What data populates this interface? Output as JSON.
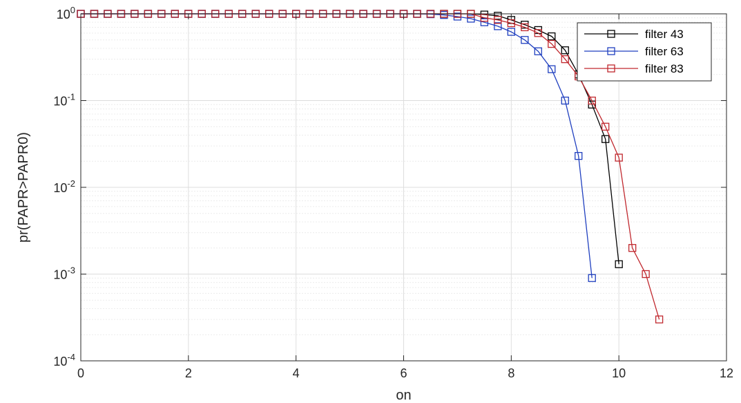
{
  "chart_data": {
    "type": "line",
    "xlabel": "on",
    "ylabel": "pr(PAPR>PAPR0)",
    "xlim": [
      0,
      12
    ],
    "ylim": [
      0.0001,
      1
    ],
    "yscale": "log",
    "xticks": [
      0,
      2,
      4,
      6,
      8,
      10,
      12
    ],
    "xtick_labels": [
      "0",
      "2",
      "4",
      "6",
      "8",
      "10",
      "12"
    ],
    "yticks": [
      1,
      0.1,
      0.01,
      0.001,
      0.0001
    ],
    "ytick_labels": [
      {
        "base": "10",
        "exp": "0"
      },
      {
        "base": "10",
        "exp": "-1"
      },
      {
        "base": "10",
        "exp": "-2"
      },
      {
        "base": "10",
        "exp": "-3"
      },
      {
        "base": "10",
        "exp": "-4"
      }
    ],
    "grid": true,
    "legend_position": "top-right",
    "series": [
      {
        "name": "filter 43",
        "color": "#000000",
        "marker": "square",
        "x": [
          0,
          0.25,
          0.5,
          0.75,
          1,
          1.25,
          1.5,
          1.75,
          2,
          2.25,
          2.5,
          2.75,
          3,
          3.25,
          3.5,
          3.75,
          4,
          4.25,
          4.5,
          4.75,
          5,
          5.25,
          5.5,
          5.75,
          6,
          6.25,
          6.5,
          6.75,
          7,
          7.25,
          7.5,
          7.75,
          8,
          8.25,
          8.5,
          8.75,
          9,
          9.25,
          9.5,
          9.75,
          10
        ],
        "y": [
          1,
          1,
          1,
          1,
          1,
          1,
          1,
          1,
          1,
          1,
          1,
          1,
          1,
          1,
          1,
          1,
          1,
          1,
          1,
          1,
          1,
          1,
          1,
          1,
          1,
          1,
          1,
          1,
          1,
          1,
          0.98,
          0.95,
          0.85,
          0.75,
          0.65,
          0.55,
          0.38,
          0.2,
          0.09,
          0.036,
          0.0013
        ]
      },
      {
        "name": "filter 63",
        "color": "#1f3fbf",
        "marker": "square",
        "x": [
          0,
          0.25,
          0.5,
          0.75,
          1,
          1.25,
          1.5,
          1.75,
          2,
          2.25,
          2.5,
          2.75,
          3,
          3.25,
          3.5,
          3.75,
          4,
          4.25,
          4.5,
          4.75,
          5,
          5.25,
          5.5,
          5.75,
          6,
          6.25,
          6.5,
          6.75,
          7,
          7.25,
          7.5,
          7.75,
          8,
          8.25,
          8.5,
          8.75,
          9,
          9.25,
          9.5
        ],
        "y": [
          1,
          1,
          1,
          1,
          1,
          1,
          1,
          1,
          1,
          1,
          1,
          1,
          1,
          1,
          1,
          1,
          1,
          1,
          1,
          1,
          1,
          1,
          1,
          1,
          1,
          1,
          0.99,
          0.97,
          0.93,
          0.88,
          0.8,
          0.72,
          0.62,
          0.5,
          0.37,
          0.23,
          0.1,
          0.023,
          0.0009
        ]
      },
      {
        "name": "filter 83",
        "color": "#c0272d",
        "marker": "square",
        "x": [
          0,
          0.25,
          0.5,
          0.75,
          1,
          1.25,
          1.5,
          1.75,
          2,
          2.25,
          2.5,
          2.75,
          3,
          3.25,
          3.5,
          3.75,
          4,
          4.25,
          4.5,
          4.75,
          5,
          5.25,
          5.5,
          5.75,
          6,
          6.25,
          6.5,
          6.75,
          7,
          7.25,
          7.5,
          7.75,
          8,
          8.25,
          8.5,
          8.75,
          9,
          9.25,
          9.5,
          9.75,
          10,
          10.25,
          10.5,
          10.75
        ],
        "y": [
          1,
          1,
          1,
          1,
          1,
          1,
          1,
          1,
          1,
          1,
          1,
          1,
          1,
          1,
          1,
          1,
          1,
          1,
          1,
          1,
          1,
          1,
          1,
          1,
          1,
          1,
          1,
          1,
          1,
          1,
          0.9,
          0.85,
          0.78,
          0.7,
          0.6,
          0.45,
          0.3,
          0.19,
          0.1,
          0.05,
          0.022,
          0.002,
          0.001,
          0.0003
        ]
      }
    ]
  }
}
